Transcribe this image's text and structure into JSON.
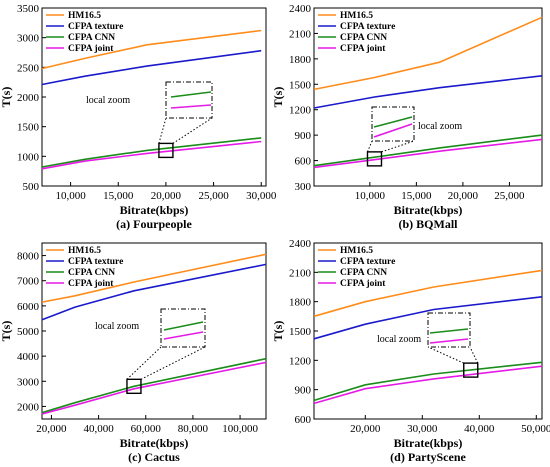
{
  "figure": {
    "panels": [
      {
        "caption": "(a) Fourpeople",
        "xlabel": "Bitrate(kbps)",
        "ylabel": "T(s)",
        "zoom_label": "local zoom"
      },
      {
        "caption": "(b) BQMall",
        "xlabel": "Bitrate(kbps)",
        "ylabel": "T(s)",
        "zoom_label": "local zoom"
      },
      {
        "caption": "(c) Cactus",
        "xlabel": "Bitrate(kbps)",
        "ylabel": "T(s)",
        "zoom_label": "local zoom"
      },
      {
        "caption": "(d) PartyScene",
        "xlabel": "Bitrate(kbps)",
        "ylabel": "T(s)",
        "zoom_label": "local zoom"
      }
    ],
    "legend": {
      "entries": [
        "HM16.5",
        "CFPA texture",
        "CFPA CNN",
        "CFPA joint"
      ],
      "colors": [
        "#ff8c1a",
        "#1a1acc",
        "#1a8c1a",
        "#e61ae6"
      ]
    }
  },
  "chart_data": [
    {
      "type": "line",
      "title": "(a) Fourpeople",
      "xlabel": "Bitrate(kbps)",
      "ylabel": "T(s)",
      "xlim": [
        7000,
        30500
      ],
      "ylim": [
        500,
        3500
      ],
      "xticks": [
        10000,
        15000,
        20000,
        25000,
        30000
      ],
      "xtick_labels": [
        "10,000",
        "15,000",
        "20,000",
        "25,000",
        "30,000"
      ],
      "yticks": [
        500,
        1000,
        1500,
        2000,
        2500,
        3000,
        3500
      ],
      "ytick_labels": [
        "500",
        "1000",
        "1500",
        "2000",
        "2500",
        "3000",
        "3500"
      ],
      "legend_position": "top-left",
      "zoom_box": {
        "x": 20000,
        "y": 1100
      },
      "series": [
        {
          "name": "HM16.5",
          "color": "#ff8c1a",
          "x": [
            7000,
            11500,
            18000,
            30000
          ],
          "y": [
            2480,
            2650,
            2880,
            3120
          ]
        },
        {
          "name": "CFPA texture",
          "color": "#1a1acc",
          "x": [
            7000,
            11500,
            18000,
            30000
          ],
          "y": [
            2210,
            2350,
            2520,
            2780
          ]
        },
        {
          "name": "CFPA CNN",
          "color": "#1a8c1a",
          "x": [
            7000,
            11500,
            18000,
            30000
          ],
          "y": [
            820,
            950,
            1100,
            1310
          ]
        },
        {
          "name": "CFPA joint",
          "color": "#e61ae6",
          "x": [
            7000,
            11500,
            18000,
            30000
          ],
          "y": [
            790,
            920,
            1050,
            1250
          ]
        }
      ]
    },
    {
      "type": "line",
      "title": "(b) BQMall",
      "xlabel": "Bitrate(kbps)",
      "ylabel": "T(s)",
      "xlim": [
        4000,
        28500
      ],
      "ylim": [
        300,
        2400
      ],
      "xticks": [
        10000,
        15000,
        20000,
        25000
      ],
      "xtick_labels": [
        "10,000",
        "15,000",
        "20,000",
        "25,000"
      ],
      "yticks": [
        300,
        600,
        900,
        1200,
        1500,
        1800,
        2100,
        2400
      ],
      "ytick_labels": [
        "300",
        "600",
        "900",
        "1200",
        "1500",
        "1800",
        "2100",
        "2400"
      ],
      "legend_position": "top-left",
      "zoom_box": {
        "x": 10500,
        "y": 620
      },
      "series": [
        {
          "name": "HM16.5",
          "color": "#ff8c1a",
          "x": [
            4000,
            10500,
            17500,
            28500
          ],
          "y": [
            1440,
            1580,
            1760,
            2290
          ]
        },
        {
          "name": "CFPA texture",
          "color": "#1a1acc",
          "x": [
            4000,
            10500,
            17500,
            28500
          ],
          "y": [
            1220,
            1350,
            1460,
            1600
          ]
        },
        {
          "name": "CFPA CNN",
          "color": "#1a8c1a",
          "x": [
            4000,
            10500,
            17500,
            28500
          ],
          "y": [
            540,
            640,
            750,
            900
          ]
        },
        {
          "name": "CFPA joint",
          "color": "#e61ae6",
          "x": [
            4000,
            10500,
            17500,
            28500
          ],
          "y": [
            520,
            610,
            710,
            850
          ]
        }
      ]
    },
    {
      "type": "line",
      "title": "(c) Cactus",
      "xlabel": "Bitrate(kbps)",
      "ylabel": "T(s)",
      "xlim": [
        16000,
        111000
      ],
      "ylim": [
        1500,
        8500
      ],
      "xticks": [
        20000,
        40000,
        60000,
        80000,
        100000
      ],
      "xtick_labels": [
        "20,000",
        "40,000",
        "60,000",
        "80,000",
        "100,000"
      ],
      "yticks": [
        2000,
        3000,
        4000,
        5000,
        6000,
        7000,
        8000
      ],
      "ytick_labels": [
        "2000",
        "3000",
        "4000",
        "5000",
        "6000",
        "7000",
        "8000"
      ],
      "legend_position": "top-left",
      "zoom_box": {
        "x": 55000,
        "y": 2800
      },
      "series": [
        {
          "name": "HM16.5",
          "color": "#ff8c1a",
          "x": [
            16000,
            30000,
            55000,
            111000
          ],
          "y": [
            6150,
            6400,
            6950,
            8050
          ]
        },
        {
          "name": "CFPA texture",
          "color": "#1a1acc",
          "x": [
            16000,
            30000,
            55000,
            111000
          ],
          "y": [
            5450,
            5950,
            6600,
            7650
          ]
        },
        {
          "name": "CFPA CNN",
          "color": "#1a8c1a",
          "x": [
            16000,
            30000,
            55000,
            111000
          ],
          "y": [
            1750,
            2150,
            2800,
            3900
          ]
        },
        {
          "name": "CFPA joint",
          "color": "#e61ae6",
          "x": [
            16000,
            30000,
            55000,
            111000
          ],
          "y": [
            1700,
            2050,
            2700,
            3750
          ]
        }
      ]
    },
    {
      "type": "line",
      "title": "(d) PartyScene",
      "xlabel": "Bitrate(kbps)",
      "ylabel": "T(s)",
      "xlim": [
        11000,
        51000
      ],
      "ylim": [
        600,
        2400
      ],
      "xticks": [
        20000,
        30000,
        40000,
        50000
      ],
      "xtick_labels": [
        "20,000",
        "30,000",
        "40,000",
        "50,000"
      ],
      "yticks": [
        600,
        900,
        1200,
        1500,
        1800,
        2100,
        2400
      ],
      "ytick_labels": [
        "600",
        "900",
        "1200",
        "1500",
        "1800",
        "2100",
        "2400"
      ],
      "legend_position": "top-left",
      "zoom_box": {
        "x": 38500,
        "y": 1100
      },
      "series": [
        {
          "name": "HM16.5",
          "color": "#ff8c1a",
          "x": [
            11000,
            20000,
            32000,
            51000
          ],
          "y": [
            1650,
            1800,
            1950,
            2120
          ]
        },
        {
          "name": "CFPA texture",
          "color": "#1a1acc",
          "x": [
            11000,
            20000,
            32000,
            51000
          ],
          "y": [
            1420,
            1570,
            1720,
            1850
          ]
        },
        {
          "name": "CFPA CNN",
          "color": "#1a8c1a",
          "x": [
            11000,
            20000,
            32000,
            51000
          ],
          "y": [
            790,
            950,
            1060,
            1180
          ]
        },
        {
          "name": "CFPA joint",
          "color": "#e61ae6",
          "x": [
            11000,
            20000,
            32000,
            51000
          ],
          "y": [
            760,
            910,
            1010,
            1140
          ]
        }
      ]
    }
  ]
}
